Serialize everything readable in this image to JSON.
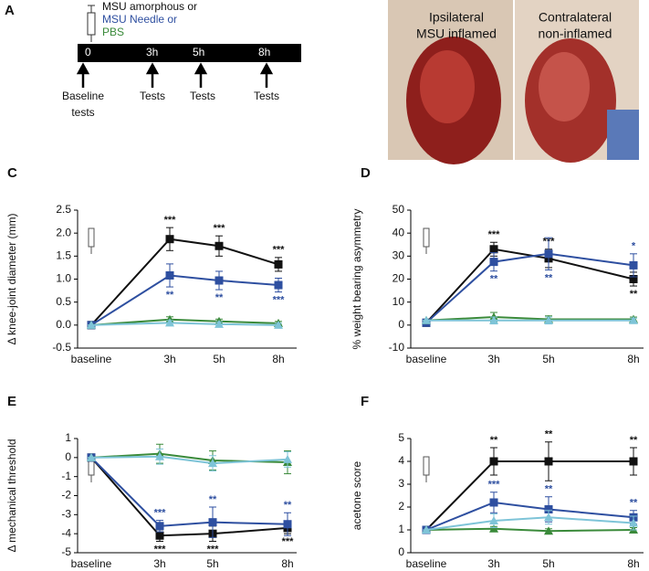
{
  "figure": {
    "panel_a": {
      "letter": "A",
      "legend": [
        {
          "text": "MSU amorphous or",
          "color": "#111111"
        },
        {
          "text": "MSU Needle or",
          "color": "#2e4fa0"
        },
        {
          "text": "PBS",
          "color": "#3a8a3a"
        }
      ],
      "timepoints": [
        "0",
        "3h",
        "5h",
        "8h"
      ],
      "events": [
        "Baseline",
        "tests",
        "Tests",
        "Tests",
        "Tests"
      ]
    },
    "panel_b": {
      "letter": "B",
      "left_label": [
        "Ipsilateral",
        "MSU inflamed"
      ],
      "right_label": [
        "Contralateral",
        "non-inflamed"
      ]
    }
  },
  "chart_data": [
    {
      "type": "line",
      "panel": "C",
      "y_label": "Δ knee-joint diameter (mm)",
      "categories": [
        "baseline",
        "3h",
        "5h",
        "8h"
      ],
      "ylim": [
        -0.5,
        2.5
      ],
      "yticks": [
        -0.5,
        {
          "value": 0,
          "label": "0.0"
        },
        0.5,
        {
          "value": 1,
          "label": "1.0"
        },
        1.5,
        {
          "value": 2,
          "label": "2.0"
        },
        2.5
      ],
      "series": [
        {
          "color": "#111111",
          "marker": "square",
          "values": [
            0,
            1.87,
            1.72,
            1.32
          ],
          "errors": [
            0,
            0.25,
            0.22,
            0.15
          ],
          "stars": [
            null,
            "***",
            "***",
            "***"
          ]
        },
        {
          "color": "#2e4fa0",
          "marker": "square",
          "values": [
            0,
            1.08,
            0.97,
            0.87
          ],
          "errors": [
            0,
            0.25,
            0.2,
            0.15
          ],
          "stars": [
            null,
            "**",
            "**",
            "***"
          ]
        },
        {
          "color": "#3a8a3a",
          "marker": "triangle",
          "values": [
            0,
            0.12,
            0.08,
            0.04
          ],
          "errors": [
            0,
            0.06,
            0.05,
            0.04
          ],
          "stars": [
            null,
            null,
            null,
            null
          ]
        },
        {
          "color": "#7ec4d8",
          "marker": "triangle",
          "values": [
            0,
            0.05,
            0.02,
            0
          ],
          "errors": [
            0,
            0.05,
            0.05,
            0.04
          ],
          "stars": [
            null,
            null,
            null,
            null
          ]
        }
      ]
    },
    {
      "type": "line",
      "panel": "D",
      "y_label": "% weight bearing asymmetry",
      "categories": [
        "baseline",
        "3h",
        "5h",
        "8h"
      ],
      "ylim": [
        -10,
        50
      ],
      "yticks": [
        -10,
        0,
        10,
        20,
        30,
        40,
        50
      ],
      "series": [
        {
          "color": "#111111",
          "marker": "square",
          "values": [
            1,
            33,
            29,
            20
          ],
          "errors": [
            0,
            3,
            4,
            3
          ],
          "stars": [
            null,
            "***",
            "***",
            "**"
          ]
        },
        {
          "color": "#2e4fa0",
          "marker": "square",
          "values": [
            1,
            27.5,
            31,
            26
          ],
          "errors": [
            0,
            4,
            7,
            5
          ],
          "stars": [
            null,
            "**",
            "**",
            "*"
          ]
        },
        {
          "color": "#3a8a3a",
          "marker": "triangle",
          "values": [
            2,
            3.5,
            2.5,
            2.5
          ],
          "errors": [
            0,
            2,
            1.5,
            1
          ],
          "stars": [
            null,
            null,
            null,
            null
          ]
        },
        {
          "color": "#7ec4d8",
          "marker": "triangle",
          "values": [
            2,
            2,
            2,
            2
          ],
          "errors": [
            0,
            1.5,
            1.5,
            1
          ],
          "stars": [
            null,
            null,
            null,
            null
          ]
        }
      ]
    },
    {
      "type": "line",
      "panel": "E",
      "y_label": "Δ mechanical threshold",
      "categories": [
        "baseline",
        "3h",
        "5h",
        "8h"
      ],
      "ylim": [
        -5,
        1
      ],
      "yticks": [
        -5,
        -4,
        -3,
        -2,
        -1,
        0,
        1
      ],
      "series": [
        {
          "color": "#111111",
          "marker": "square",
          "values": [
            0,
            -4.1,
            -4.0,
            -3.7
          ],
          "errors": [
            0,
            0.3,
            0.4,
            0.3
          ],
          "stars": [
            null,
            "***",
            "***",
            "***"
          ]
        },
        {
          "color": "#2e4fa0",
          "marker": "square",
          "values": [
            0,
            -3.6,
            -3.4,
            -3.5
          ],
          "errors": [
            0,
            0.3,
            0.8,
            0.6
          ],
          "stars": [
            null,
            "***",
            "**",
            "**"
          ]
        },
        {
          "color": "#3a8a3a",
          "marker": "triangle",
          "values": [
            0,
            0.2,
            -0.15,
            -0.25
          ],
          "errors": [
            0,
            0.5,
            0.5,
            0.6
          ],
          "stars": [
            null,
            null,
            null,
            null
          ]
        },
        {
          "color": "#7ec4d8",
          "marker": "triangle",
          "values": [
            0,
            0.05,
            -0.3,
            -0.1
          ],
          "errors": [
            0,
            0.4,
            0.4,
            0.4
          ],
          "stars": [
            null,
            null,
            null,
            null
          ]
        }
      ]
    },
    {
      "type": "line",
      "panel": "F",
      "y_label": "acetone score",
      "categories": [
        "baseline",
        "3h",
        "5h",
        "8h"
      ],
      "ylim": [
        0,
        5
      ],
      "yticks": [
        0,
        1,
        2,
        3,
        4,
        5
      ],
      "series": [
        {
          "color": "#111111",
          "marker": "square",
          "values": [
            1,
            4,
            4,
            4
          ],
          "errors": [
            0,
            0.6,
            0.85,
            0.6
          ],
          "stars": [
            null,
            "**",
            "**",
            "**"
          ]
        },
        {
          "color": "#2e4fa0",
          "marker": "square",
          "values": [
            1,
            2.2,
            1.9,
            1.55
          ],
          "errors": [
            0,
            0.45,
            0.55,
            0.3
          ],
          "stars": [
            null,
            "***",
            "**",
            "**"
          ]
        },
        {
          "color": "#3a8a3a",
          "marker": "triangle",
          "values": [
            1,
            1.05,
            0.95,
            1.0
          ],
          "errors": [
            0,
            0.1,
            0.1,
            0.1
          ],
          "stars": [
            null,
            null,
            null,
            null
          ]
        },
        {
          "color": "#7ec4d8",
          "marker": "triangle",
          "values": [
            1,
            1.4,
            1.55,
            1.3
          ],
          "errors": [
            0,
            0.3,
            0.3,
            0.3
          ],
          "stars": [
            null,
            null,
            null,
            null
          ]
        }
      ]
    }
  ]
}
